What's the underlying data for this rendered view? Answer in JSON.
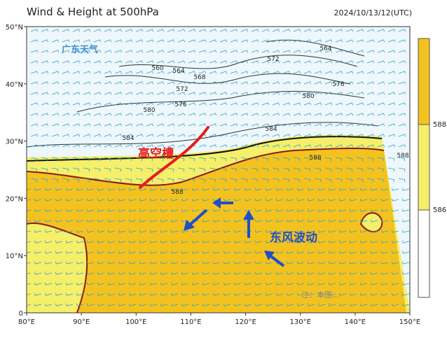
{
  "header": {
    "title": "Wind & Height at 500hPa",
    "timestamp": "2024/10/13/12(UTC)"
  },
  "logo": "广东天气",
  "map": {
    "lon_ticks": [
      {
        "value": 80,
        "label": "80°E"
      },
      {
        "value": 90,
        "label": "90°E"
      },
      {
        "value": 100,
        "label": "100°E"
      },
      {
        "value": 110,
        "label": "110°E"
      },
      {
        "value": 120,
        "label": "120°E"
      },
      {
        "value": 130,
        "label": "130°E"
      },
      {
        "value": 140,
        "label": "140°E"
      },
      {
        "value": 150,
        "label": "150°E"
      }
    ],
    "lat_ticks": [
      {
        "value": 0,
        "label": "0"
      },
      {
        "value": 10,
        "label": "10°N"
      },
      {
        "value": 20,
        "label": "20°N"
      },
      {
        "value": 30,
        "label": "30°N"
      },
      {
        "value": 40,
        "label": "40°N"
      },
      {
        "value": 50,
        "label": "50°N"
      }
    ],
    "contour_labels": [
      "560",
      "564",
      "568",
      "572",
      "576",
      "580",
      "584",
      "588",
      "588",
      "564",
      "572",
      "576",
      "580",
      "584",
      "588"
    ],
    "annotations": [
      "高空槽",
      "东风波动"
    ],
    "watermark": "注：本图…"
  },
  "colorbar": {
    "labels": [
      "588",
      "586"
    ]
  }
}
